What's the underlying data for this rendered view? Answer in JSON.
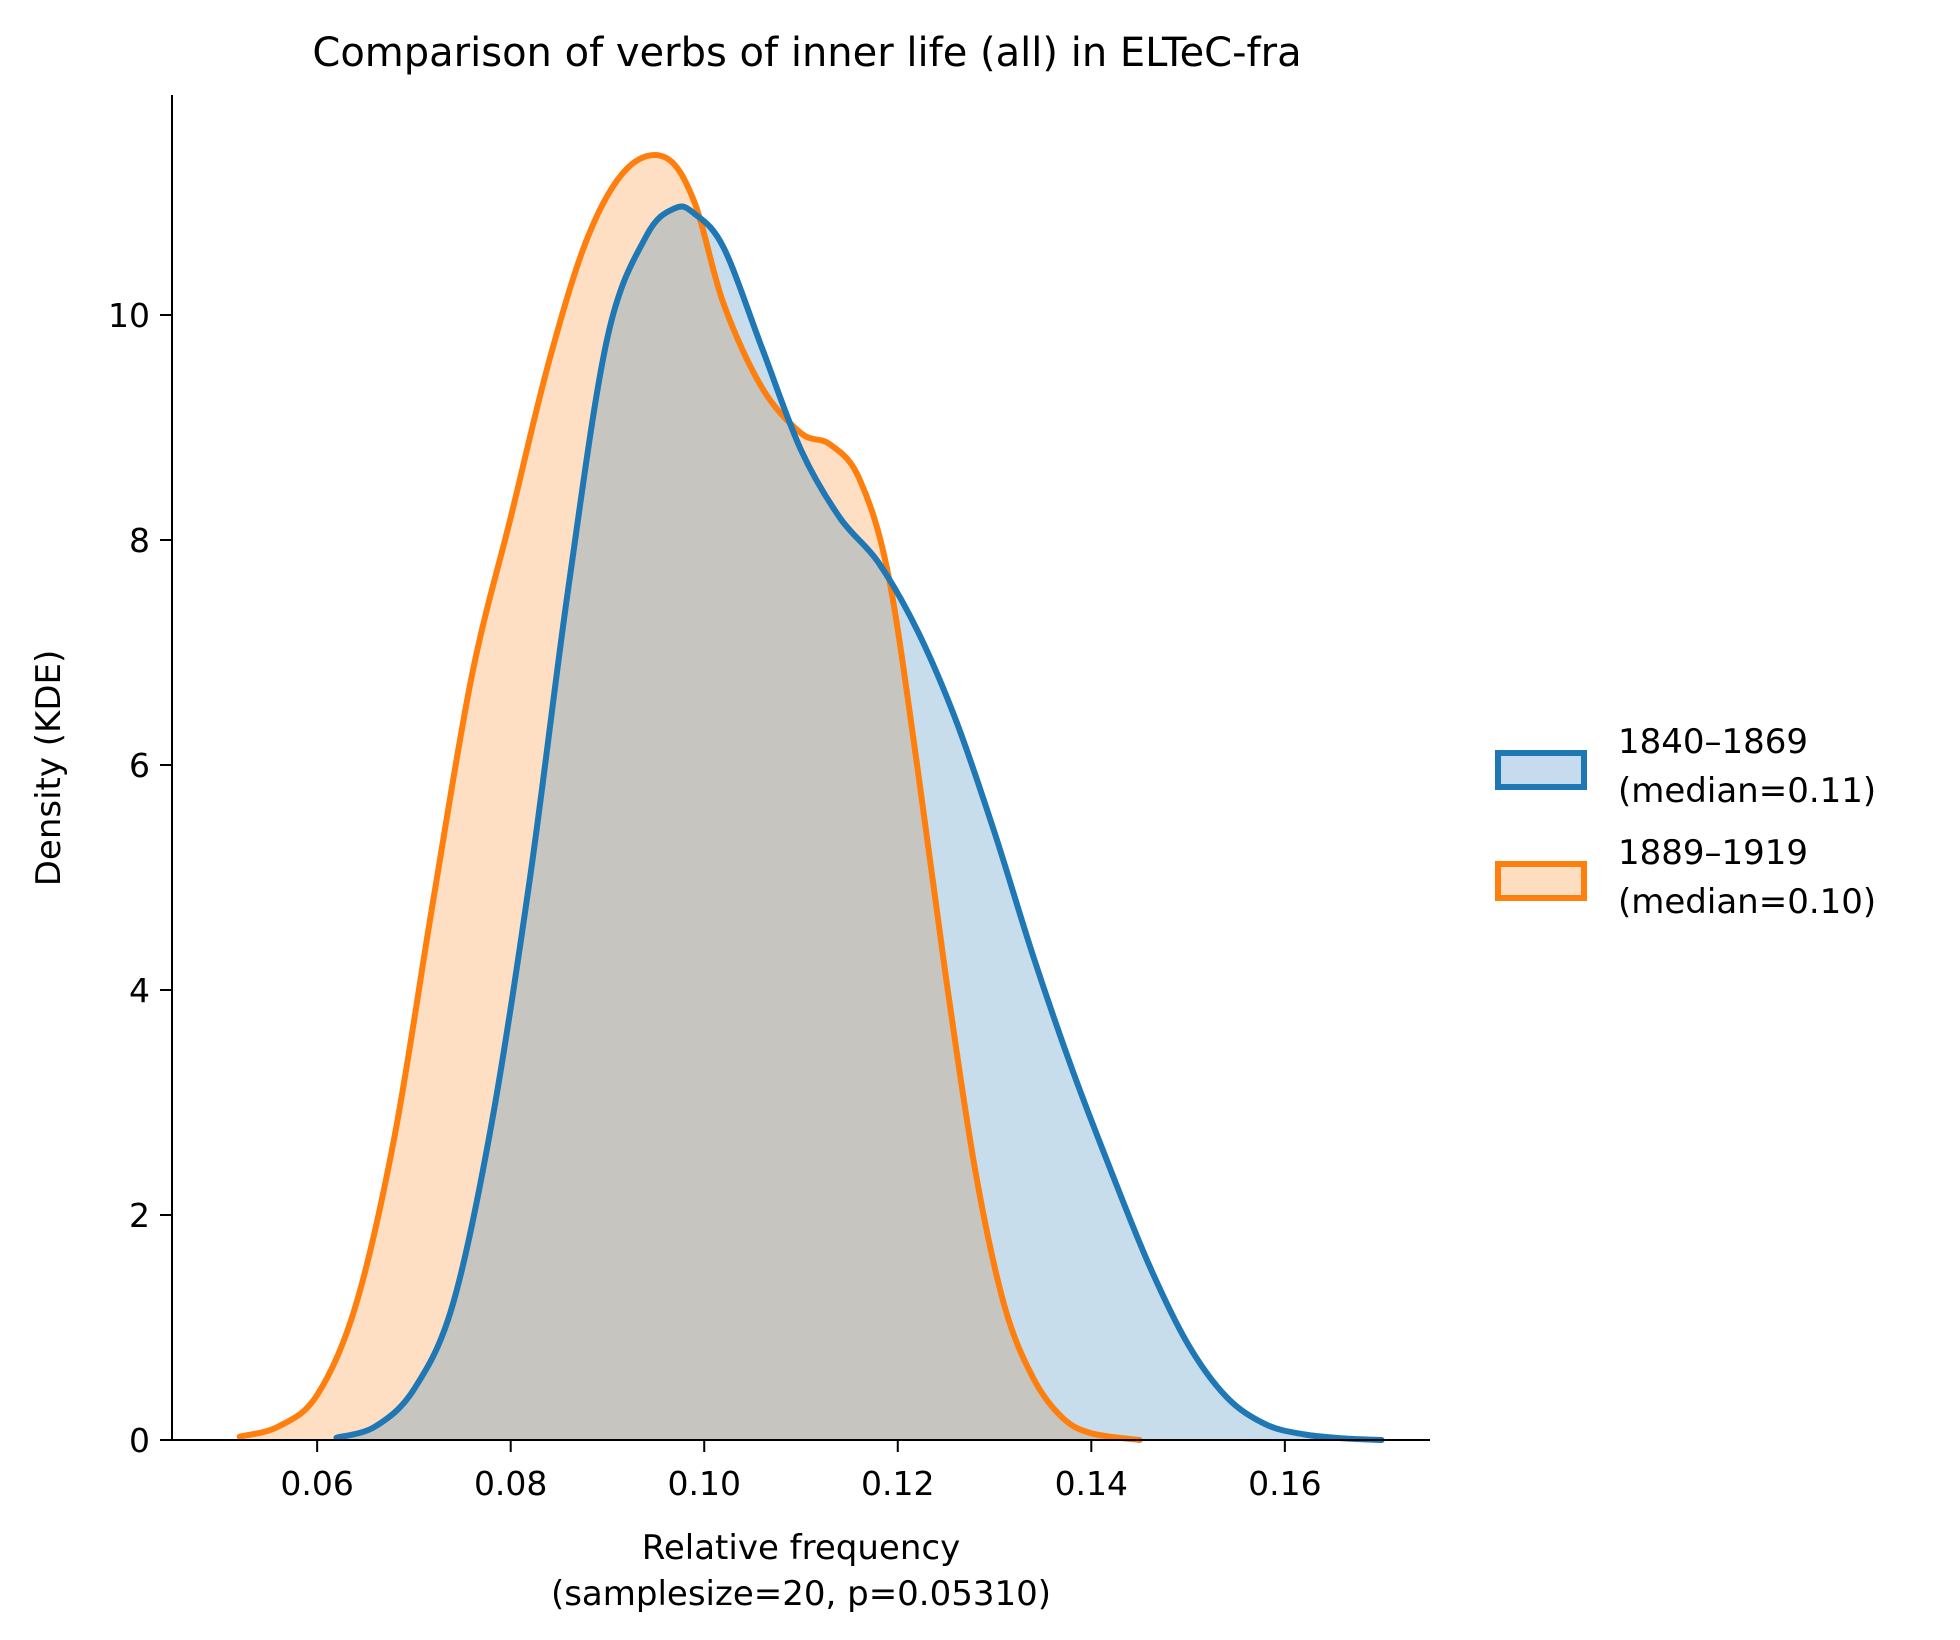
{
  "chart_data": {
    "type": "area",
    "title": "Comparison of verbs of inner life (all) in ELTeC-fra",
    "xlabel": "Relative frequency",
    "xlabel_sub": "(samplesize=20, p=0.05310)",
    "ylabel": "Density (KDE)",
    "xlim": [
      0.045,
      0.175
    ],
    "ylim": [
      0,
      12
    ],
    "xticks": [
      0.06,
      0.08,
      0.1,
      0.12,
      0.14,
      0.16
    ],
    "xtick_labels": [
      "0.06",
      "0.08",
      "0.10",
      "0.12",
      "0.14",
      "0.16"
    ],
    "yticks": [
      0,
      2,
      4,
      6,
      8,
      10
    ],
    "ytick_labels": [
      "0",
      "2",
      "4",
      "6",
      "8",
      "10"
    ],
    "grid": false,
    "legend_position": "right",
    "series": [
      {
        "name": "1840–1869",
        "legend_line1": "1840–1869",
        "legend_line2": "(median=0.11)",
        "color": "#1f77b4",
        "x": [
          0.062,
          0.066,
          0.07,
          0.074,
          0.078,
          0.082,
          0.086,
          0.09,
          0.094,
          0.097,
          0.099,
          0.102,
          0.106,
          0.11,
          0.114,
          0.118,
          0.122,
          0.126,
          0.13,
          0.134,
          0.138,
          0.142,
          0.146,
          0.15,
          0.154,
          0.158,
          0.162,
          0.166,
          0.17
        ],
        "y": [
          0.02,
          0.12,
          0.45,
          1.2,
          2.8,
          5.0,
          7.6,
          9.8,
          10.7,
          10.95,
          10.9,
          10.6,
          9.7,
          8.8,
          8.2,
          7.8,
          7.2,
          6.4,
          5.4,
          4.3,
          3.3,
          2.4,
          1.55,
          0.85,
          0.38,
          0.14,
          0.05,
          0.015,
          0.0
        ]
      },
      {
        "name": "1889–1919",
        "legend_line1": "1889–1919",
        "legend_line2": "(median=0.10)",
        "color": "#ff7f0e",
        "x": [
          0.052,
          0.056,
          0.06,
          0.064,
          0.068,
          0.072,
          0.076,
          0.08,
          0.084,
          0.088,
          0.092,
          0.096,
          0.099,
          0.102,
          0.106,
          0.11,
          0.113,
          0.116,
          0.119,
          0.122,
          0.125,
          0.128,
          0.131,
          0.134,
          0.137,
          0.14,
          0.145
        ],
        "y": [
          0.03,
          0.12,
          0.4,
          1.2,
          2.7,
          4.8,
          6.8,
          8.2,
          9.6,
          10.7,
          11.3,
          11.4,
          11.0,
          10.1,
          9.35,
          8.95,
          8.85,
          8.55,
          7.7,
          6.0,
          4.1,
          2.4,
          1.2,
          0.55,
          0.2,
          0.06,
          0.0
        ]
      }
    ]
  }
}
